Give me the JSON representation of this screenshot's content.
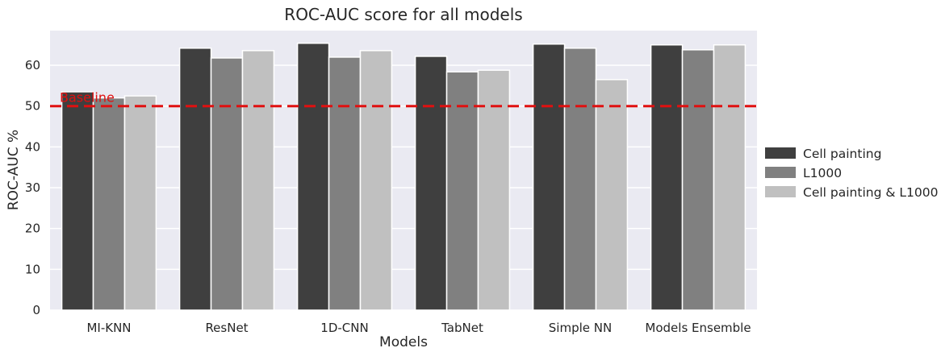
{
  "chart_data": {
    "type": "bar",
    "title": "ROC-AUC score for all models",
    "xlabel": "Models",
    "ylabel": "ROC-AUC %",
    "ylim": [
      0,
      68.5
    ],
    "yticks": [
      0,
      10,
      20,
      30,
      40,
      50,
      60
    ],
    "grid": true,
    "legend_position": "right",
    "categories": [
      "MI-KNN",
      "ResNet",
      "1D-CNN",
      "TabNet",
      "Simple NN",
      "Models Ensemble"
    ],
    "series": [
      {
        "name": "Cell painting",
        "color": "#3f3f3f",
        "values": [
          53.5,
          64.2,
          65.4,
          62.2,
          65.2,
          65.0
        ]
      },
      {
        "name": "L1000",
        "color": "#808080",
        "values": [
          52.0,
          61.8,
          62.0,
          58.4,
          64.2,
          63.8
        ]
      },
      {
        "name": "Cell painting & L1000",
        "color": "#c0c0c0",
        "values": [
          52.5,
          63.6,
          63.6,
          58.8,
          56.5,
          65.0
        ]
      }
    ],
    "reference_line": {
      "label": "Baseline",
      "value": 50,
      "color": "#e01010"
    },
    "background_color": "#eaeaf2"
  }
}
